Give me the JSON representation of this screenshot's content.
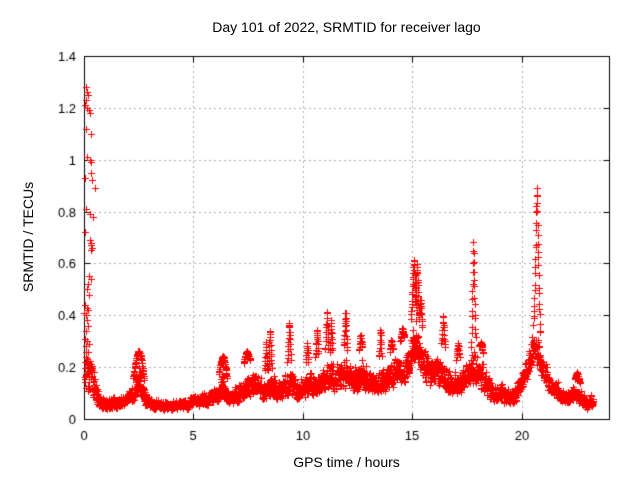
{
  "chart_data": {
    "type": "scatter",
    "title": "Day 101 of 2022, SRMTID for receiver lago",
    "xlabel": "GPS time / hours",
    "ylabel": "SRMTID / TECUs",
    "xlim": [
      0,
      24
    ],
    "ylim": [
      0,
      1.4
    ],
    "xtick_values": [
      0,
      5,
      10,
      15,
      20
    ],
    "xtick_labels": [
      "0",
      "5",
      "10",
      "15",
      "20"
    ],
    "ytick_values": [
      0,
      0.2,
      0.4,
      0.6,
      0.8,
      1.0,
      1.2,
      1.4
    ],
    "ytick_labels": [
      "0",
      "0.2",
      "0.4",
      "0.6",
      "0.8",
      "1",
      "1.2",
      "1.4"
    ],
    "grid": true,
    "legend": false,
    "marker_symbol": "+",
    "marker_color": "#ff0000",
    "grid_color": "#b0b0b0",
    "frame_color": "#000000",
    "background_color": "#ffffff",
    "sampling": {
      "interval_hours": 0.008333,
      "start_hour": 0.03,
      "end_hour": 23.28,
      "seed": 20221011
    },
    "band_envelope": [
      [
        0.0,
        0.08,
        0.45
      ],
      [
        0.3,
        0.06,
        0.32
      ],
      [
        0.55,
        0.04,
        0.18
      ],
      [
        0.8,
        0.03,
        0.1
      ],
      [
        1.2,
        0.03,
        0.11
      ],
      [
        1.6,
        0.03,
        0.1
      ],
      [
        2.0,
        0.04,
        0.12
      ],
      [
        2.3,
        0.05,
        0.17
      ],
      [
        2.5,
        0.07,
        0.26
      ],
      [
        2.8,
        0.04,
        0.13
      ],
      [
        3.2,
        0.03,
        0.09
      ],
      [
        3.8,
        0.03,
        0.08
      ],
      [
        4.4,
        0.03,
        0.09
      ],
      [
        5.0,
        0.04,
        0.11
      ],
      [
        5.6,
        0.04,
        0.13
      ],
      [
        6.1,
        0.05,
        0.15
      ],
      [
        6.35,
        0.07,
        0.23
      ],
      [
        6.6,
        0.05,
        0.13
      ],
      [
        7.0,
        0.05,
        0.15
      ],
      [
        7.4,
        0.07,
        0.24
      ],
      [
        7.8,
        0.07,
        0.21
      ],
      [
        8.2,
        0.06,
        0.18
      ],
      [
        8.6,
        0.06,
        0.2
      ],
      [
        9.0,
        0.06,
        0.18
      ],
      [
        9.4,
        0.07,
        0.24
      ],
      [
        9.8,
        0.06,
        0.19
      ],
      [
        10.2,
        0.07,
        0.22
      ],
      [
        10.6,
        0.08,
        0.24
      ],
      [
        11.0,
        0.09,
        0.27
      ],
      [
        11.4,
        0.09,
        0.26
      ],
      [
        11.9,
        0.09,
        0.28
      ],
      [
        12.3,
        0.08,
        0.24
      ],
      [
        12.7,
        0.09,
        0.28
      ],
      [
        13.1,
        0.07,
        0.22
      ],
      [
        13.5,
        0.08,
        0.24
      ],
      [
        14.0,
        0.09,
        0.26
      ],
      [
        14.5,
        0.11,
        0.3
      ],
      [
        14.8,
        0.13,
        0.34
      ],
      [
        15.1,
        0.18,
        0.45
      ],
      [
        15.3,
        0.16,
        0.4
      ],
      [
        15.6,
        0.12,
        0.32
      ],
      [
        16.0,
        0.1,
        0.28
      ],
      [
        16.4,
        0.11,
        0.3
      ],
      [
        16.8,
        0.07,
        0.2
      ],
      [
        17.2,
        0.08,
        0.24
      ],
      [
        17.6,
        0.09,
        0.26
      ],
      [
        17.85,
        0.12,
        0.32
      ],
      [
        18.2,
        0.09,
        0.26
      ],
      [
        18.6,
        0.06,
        0.18
      ],
      [
        19.0,
        0.05,
        0.16
      ],
      [
        19.5,
        0.04,
        0.14
      ],
      [
        19.9,
        0.07,
        0.19
      ],
      [
        20.2,
        0.13,
        0.3
      ],
      [
        20.5,
        0.18,
        0.36
      ],
      [
        20.75,
        0.18,
        0.36
      ],
      [
        21.0,
        0.13,
        0.28
      ],
      [
        21.3,
        0.09,
        0.2
      ],
      [
        21.7,
        0.06,
        0.16
      ],
      [
        22.1,
        0.05,
        0.13
      ],
      [
        22.5,
        0.06,
        0.16
      ],
      [
        22.9,
        0.03,
        0.11
      ],
      [
        23.28,
        0.04,
        0.1
      ]
    ],
    "spike_ridges": [
      [
        2.5,
        0.25,
        0.26
      ],
      [
        6.35,
        0.18,
        0.24
      ],
      [
        7.45,
        0.15,
        0.26
      ],
      [
        8.32,
        0.06,
        0.3
      ],
      [
        8.5,
        0.08,
        0.35
      ],
      [
        9.38,
        0.08,
        0.38
      ],
      [
        10.2,
        0.06,
        0.3
      ],
      [
        10.65,
        0.07,
        0.35
      ],
      [
        11.1,
        0.07,
        0.42
      ],
      [
        11.3,
        0.06,
        0.38
      ],
      [
        11.95,
        0.08,
        0.42
      ],
      [
        12.65,
        0.07,
        0.33
      ],
      [
        13.55,
        0.06,
        0.35
      ],
      [
        14.05,
        0.07,
        0.31
      ],
      [
        14.55,
        0.1,
        0.35
      ],
      [
        15.08,
        0.13,
        0.62
      ],
      [
        15.22,
        0.1,
        0.6
      ],
      [
        15.38,
        0.08,
        0.47
      ],
      [
        16.42,
        0.08,
        0.4
      ],
      [
        17.1,
        0.08,
        0.3
      ],
      [
        17.8,
        0.1,
        0.68
      ],
      [
        18.15,
        0.08,
        0.3
      ],
      [
        20.7,
        0.15,
        0.9
      ],
      [
        22.55,
        0.12,
        0.18
      ]
    ],
    "outlier_points": [
      [
        0.07,
        1.28
      ],
      [
        0.12,
        1.26
      ],
      [
        0.17,
        1.25
      ],
      [
        0.1,
        1.23
      ],
      [
        0.05,
        1.21
      ],
      [
        0.13,
        1.2
      ],
      [
        0.22,
        1.19
      ],
      [
        0.28,
        1.18
      ],
      [
        0.08,
        1.12
      ],
      [
        0.3,
        1.1
      ],
      [
        0.12,
        1.01
      ],
      [
        0.28,
        1.0
      ],
      [
        0.33,
        0.99
      ],
      [
        0.3,
        0.95
      ],
      [
        0.05,
        0.93
      ],
      [
        0.35,
        0.92
      ],
      [
        0.48,
        0.89
      ],
      [
        0.1,
        0.81
      ],
      [
        0.28,
        0.79
      ],
      [
        0.42,
        0.78
      ],
      [
        0.05,
        0.72
      ],
      [
        0.27,
        0.69
      ],
      [
        0.3,
        0.68
      ],
      [
        0.33,
        0.67
      ],
      [
        0.36,
        0.66
      ],
      [
        0.3,
        0.65
      ],
      [
        0.25,
        0.55
      ],
      [
        0.3,
        0.54
      ],
      [
        0.2,
        0.52
      ],
      [
        0.15,
        0.5
      ],
      [
        0.22,
        0.48
      ],
      [
        0.05,
        0.44
      ],
      [
        0.12,
        0.43
      ],
      [
        0.18,
        0.42
      ],
      [
        0.02,
        0.41
      ],
      [
        0.07,
        0.4
      ],
      [
        0.15,
        0.38
      ],
      [
        0.2,
        0.36
      ],
      [
        0.1,
        0.34
      ],
      [
        0.05,
        0.31
      ],
      [
        0.15,
        0.3
      ],
      [
        0.25,
        0.29
      ],
      [
        0.1,
        0.28
      ],
      [
        0.18,
        0.26
      ],
      [
        0.08,
        0.24
      ],
      [
        0.03,
        0.22
      ],
      [
        0.13,
        0.21
      ],
      [
        0.23,
        0.2
      ]
    ]
  }
}
